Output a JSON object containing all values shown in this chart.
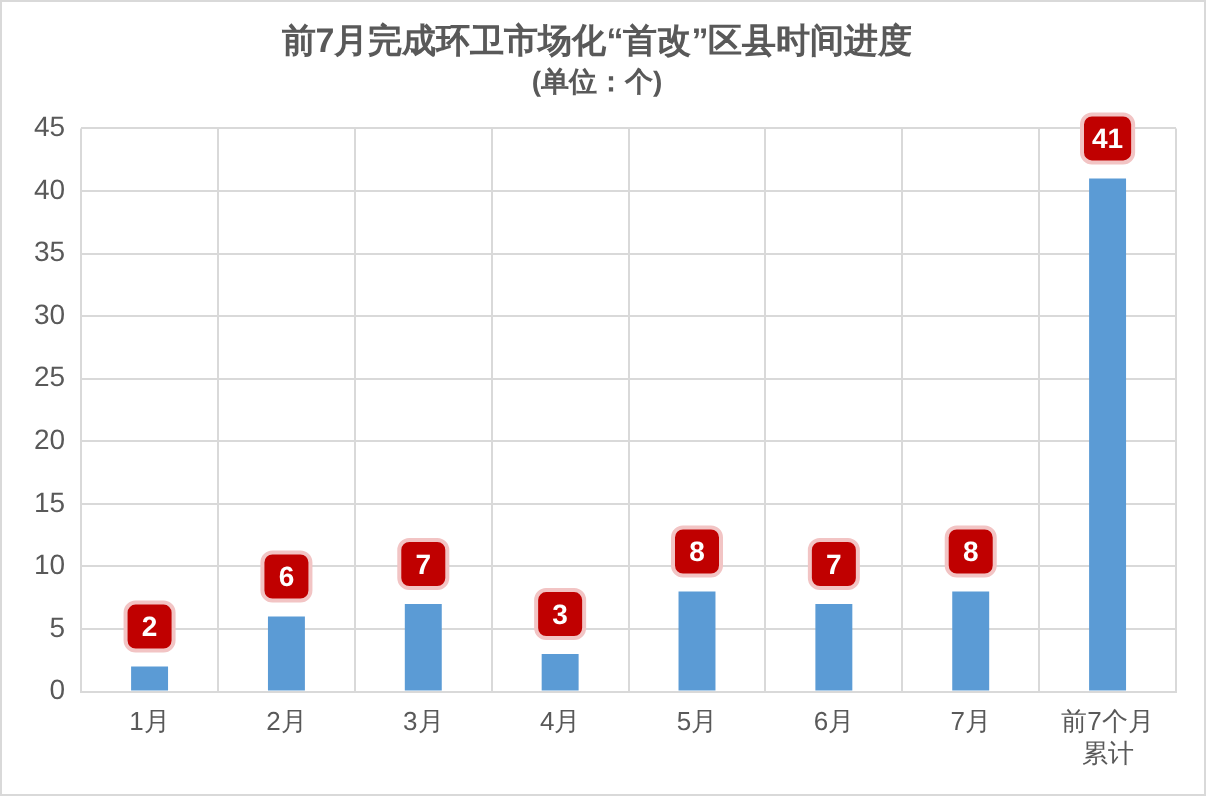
{
  "chart_data": {
    "type": "bar",
    "title": "前7月完成环卫市场化“首改”区县时间进度",
    "subtitle": "(单位：个)",
    "categories": [
      "1月",
      "2月",
      "3月",
      "4月",
      "5月",
      "6月",
      "7月",
      "前7个月累计"
    ],
    "values": [
      2,
      6,
      7,
      3,
      8,
      7,
      8,
      41
    ],
    "color": "#5b9bd5",
    "ylim": [
      0,
      45
    ],
    "yticks": [
      0,
      5,
      10,
      15,
      20,
      25,
      30,
      35,
      40,
      45
    ],
    "grid": true,
    "data_labels": true
  }
}
